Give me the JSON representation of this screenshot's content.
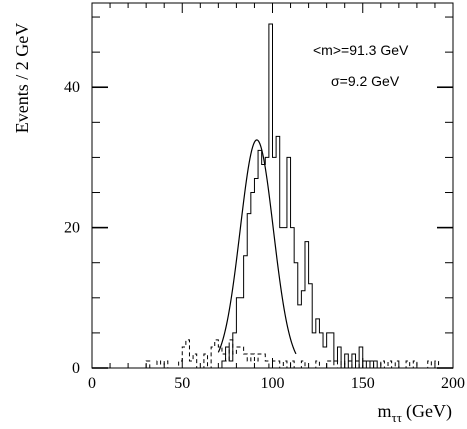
{
  "chart_data": {
    "type": "histogram",
    "ylabel": "Events / 2 GeV",
    "xlabel": "m",
    "xlabel_sub": "ττ",
    "xlabel_unit": "(GeV)",
    "xlim": [
      0,
      200
    ],
    "ylim": [
      0,
      52
    ],
    "xticks": [
      0,
      50,
      100,
      150,
      200
    ],
    "yticks": [
      0,
      20,
      40
    ],
    "bin_width": 2,
    "annotations": [
      "<m>=91.3 GeV",
      "σ=9.2 GeV"
    ],
    "series": [
      {
        "style": "solid-histogram",
        "x_start": 70,
        "values": [
          0,
          1,
          3,
          1,
          5,
          10,
          10,
          16,
          22,
          25,
          27,
          31,
          29,
          30,
          49,
          30,
          33,
          20,
          20,
          30,
          20,
          15,
          9,
          11,
          18,
          12,
          5,
          7,
          5,
          3,
          5,
          5,
          1,
          3,
          0,
          2,
          0,
          2,
          0,
          3,
          0,
          1,
          0,
          1
        ]
      },
      {
        "style": "dashed-histogram",
        "x_start": 30,
        "values": [
          1,
          0,
          0,
          1,
          0,
          1,
          0,
          0,
          0,
          1,
          3,
          4,
          1,
          2,
          0,
          0,
          2,
          0,
          3,
          4,
          3,
          2,
          1,
          4,
          2,
          3,
          3,
          2,
          1,
          2,
          1,
          2,
          2,
          1,
          0,
          1,
          1,
          0,
          1,
          0,
          1,
          0,
          0,
          1,
          0,
          0,
          0,
          1,
          0,
          0,
          1,
          1,
          0,
          1,
          0,
          1,
          1,
          0,
          1,
          0,
          1,
          1,
          1,
          0,
          0,
          1,
          0,
          1,
          0,
          1,
          0,
          0,
          1,
          0,
          1,
          0,
          0,
          0,
          1,
          0,
          1
        ]
      },
      {
        "style": "gaussian-fit",
        "mean": 91.3,
        "sigma": 9.2,
        "amplitude": 32.5,
        "range": [
          70,
          113
        ]
      }
    ]
  }
}
